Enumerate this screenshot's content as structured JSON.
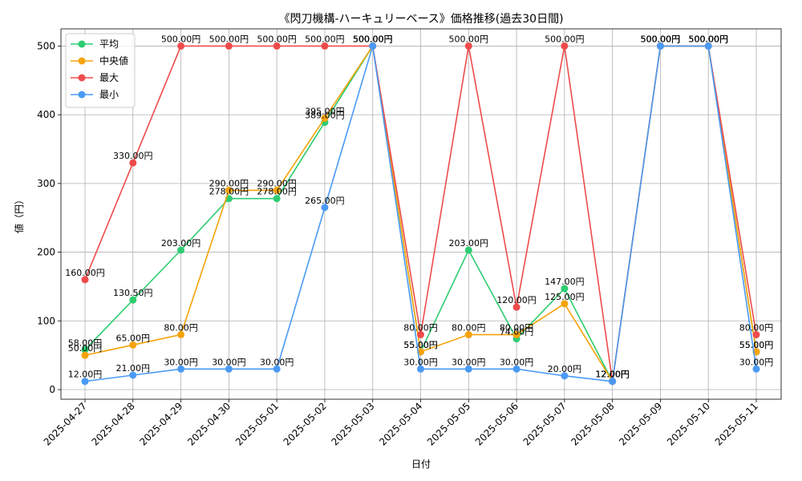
{
  "chart_data": {
    "type": "line",
    "title": "《閃刀機構-ハーキュリーベース》価格推移(過去30日間)",
    "xlabel": "日付",
    "ylabel": "値（円）",
    "ylim": [
      -14,
      525
    ],
    "yticks": [
      0,
      100,
      200,
      300,
      400,
      500
    ],
    "grid": true,
    "legend_position": "top-left",
    "value_suffix": "円",
    "categories": [
      "2025-04-27",
      "2025-04-28",
      "2025-04-29",
      "2025-04-30",
      "2025-05-01",
      "2025-05-02",
      "2025-05-03",
      "2025-05-04",
      "2025-05-05",
      "2025-05-06",
      "2025-05-07",
      "2025-05-08",
      "2025-05-09",
      "2025-05-10",
      "2025-05-11"
    ],
    "series": [
      {
        "name": "平均",
        "color": "#2ecc71",
        "values": [
          58,
          130.5,
          203,
          278,
          278,
          389,
          500,
          55,
          203,
          74,
          147,
          12,
          500,
          500,
          55
        ]
      },
      {
        "name": "中央値",
        "color": "#f5a30a",
        "values": [
          50,
          65,
          80,
          290,
          290,
          395,
          500,
          55,
          80,
          80,
          125,
          12,
          500,
          500,
          55
        ]
      },
      {
        "name": "最大",
        "color": "#ef4b4b",
        "values": [
          160,
          330,
          500,
          500,
          500,
          500,
          500,
          80,
          500,
          120,
          500,
          12,
          500,
          500,
          80
        ]
      },
      {
        "name": "最小",
        "color": "#4a9af5",
        "values": [
          12,
          21,
          30,
          30,
          30,
          265,
          500,
          30,
          30,
          30,
          20,
          12,
          500,
          500,
          30
        ]
      }
    ]
  }
}
